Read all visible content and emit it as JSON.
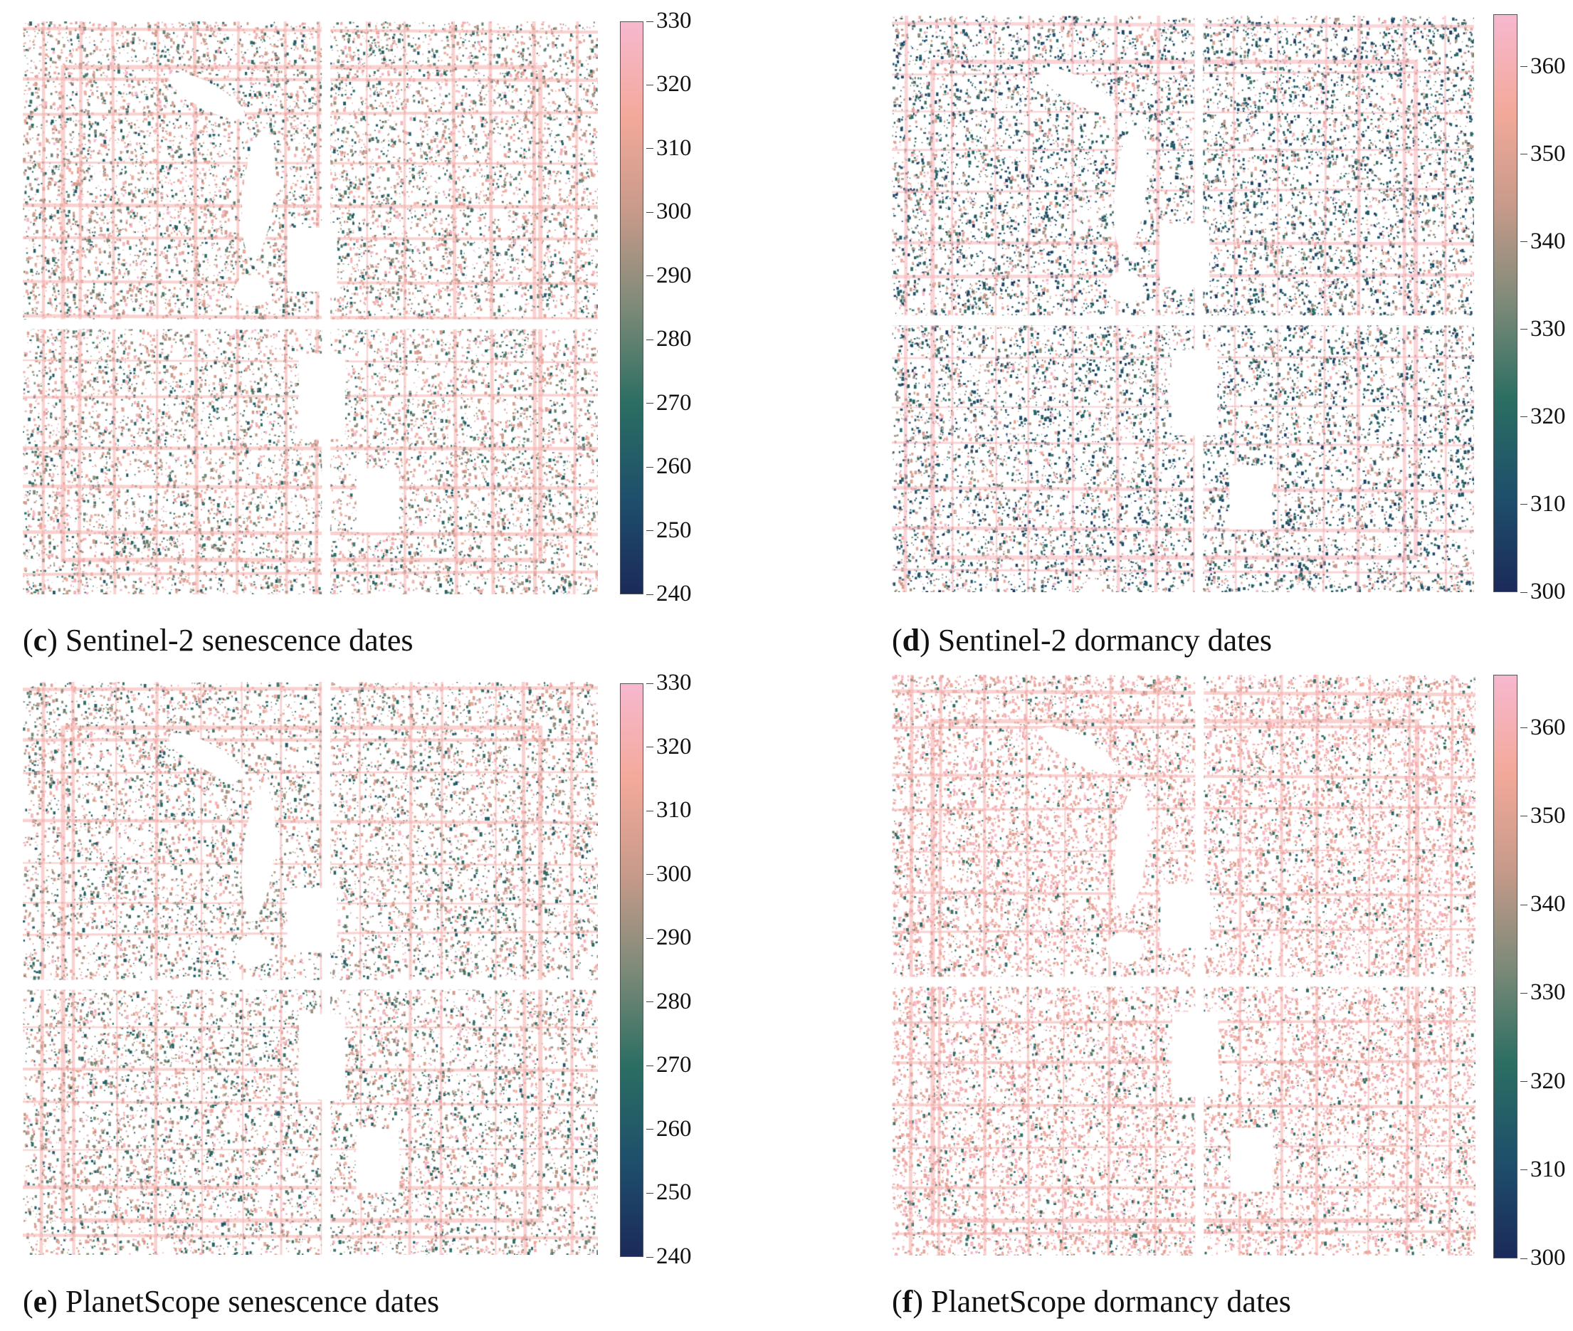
{
  "colormap": [
    "#1b2a5a",
    "#1e4f6b",
    "#2b6e62",
    "#7d8a78",
    "#c79a8a",
    "#f3a99a",
    "#f7b8cf"
  ],
  "panels": [
    {
      "id": "c",
      "letter": "c",
      "caption": "Sentinel-2 senescence dates",
      "colorbar": {
        "min": 240,
        "max": 330,
        "ticks": [
          "330",
          "320",
          "310",
          "300",
          "290",
          "280",
          "270",
          "260",
          "250",
          "240"
        ]
      },
      "palette_bias": "mixed"
    },
    {
      "id": "d",
      "letter": "d",
      "caption": "Sentinel-2 dormancy dates",
      "colorbar": {
        "min": 300,
        "max": 366,
        "ticks": [
          "360",
          "350",
          "340",
          "330",
          "320",
          "310",
          "300"
        ]
      },
      "palette_bias": "dark"
    },
    {
      "id": "e",
      "letter": "e",
      "caption": "PlanetScope senescence dates",
      "colorbar": {
        "min": 240,
        "max": 330,
        "ticks": [
          "330",
          "320",
          "310",
          "300",
          "290",
          "280",
          "270",
          "260",
          "250",
          "240"
        ]
      },
      "palette_bias": "mixed"
    },
    {
      "id": "f",
      "letter": "f",
      "caption": "PlanetScope dormancy dates",
      "colorbar": {
        "min": 300,
        "max": 366,
        "ticks": [
          "360",
          "350",
          "340",
          "330",
          "320",
          "310",
          "300"
        ]
      },
      "palette_bias": "pink"
    }
  ]
}
